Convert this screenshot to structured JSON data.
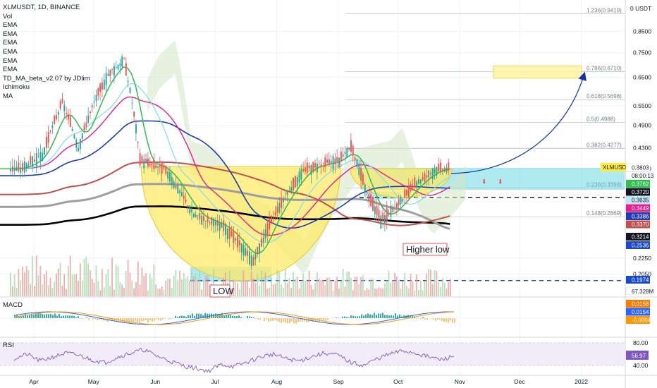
{
  "legend": {
    "symbol": "XLMUSDT, 1D, BINANCE",
    "indicators": [
      "Vol",
      "EMA",
      "EMA",
      "EMA",
      "EMA",
      "EMA",
      "EMA",
      "TD_MA_beta_v2.07 by JDlim",
      "Ichimoku",
      "MA"
    ]
  },
  "chart_data": {
    "type": "candlestick",
    "symbol": "XLMUSDT",
    "interval": "1D",
    "exchange": "BINANCE",
    "currency_label": "0 USDT",
    "x_ticks": [
      "Apr",
      "May",
      "Jun",
      "Jul",
      "Aug",
      "Sep",
      "Oct",
      "Nov",
      "Dec",
      "2022"
    ],
    "y_ticks": [
      "0.8500",
      "0.7500",
      "0.6500",
      "0.5500",
      "0.4900",
      "0.4300",
      "0.3800",
      "0.2250",
      "0.2050"
    ],
    "ylim": [
      0.18,
      0.98
    ],
    "price_path": [
      {
        "date": "2021-03-25",
        "close": 0.38
      },
      {
        "date": "2021-04-05",
        "close": 0.41
      },
      {
        "date": "2021-04-15",
        "close": 0.56
      },
      {
        "date": "2021-04-23",
        "close": 0.43
      },
      {
        "date": "2021-05-01",
        "close": 0.56
      },
      {
        "date": "2021-05-08",
        "close": 0.66
      },
      {
        "date": "2021-05-16",
        "close": 0.72
      },
      {
        "date": "2021-05-24",
        "close": 0.4
      },
      {
        "date": "2021-06-05",
        "close": 0.38
      },
      {
        "date": "2021-06-20",
        "close": 0.29
      },
      {
        "date": "2021-07-05",
        "close": 0.27
      },
      {
        "date": "2021-07-20",
        "close": 0.22
      },
      {
        "date": "2021-08-01",
        "close": 0.3
      },
      {
        "date": "2021-08-15",
        "close": 0.38
      },
      {
        "date": "2021-09-01",
        "close": 0.4
      },
      {
        "date": "2021-09-07",
        "close": 0.43
      },
      {
        "date": "2021-09-15",
        "close": 0.33
      },
      {
        "date": "2021-09-22",
        "close": 0.28
      },
      {
        "date": "2021-10-01",
        "close": 0.31
      },
      {
        "date": "2021-10-10",
        "close": 0.35
      },
      {
        "date": "2021-10-20",
        "close": 0.38
      },
      {
        "date": "2021-10-26",
        "close": 0.38
      }
    ],
    "fib_levels": [
      {
        "label": "1.236(0.9419)",
        "value": 0.9419
      },
      {
        "label": "0.786(0.6710)",
        "value": 0.671
      },
      {
        "label": "0.618(0.5698)",
        "value": 0.5698
      },
      {
        "label": "0.5(0.4988)",
        "value": 0.4988
      },
      {
        "label": "0.382(0.4277)",
        "value": 0.4277
      },
      {
        "label": "0.236(0.3398)",
        "value": 0.3398
      },
      {
        "label": "0.148(0.2869)",
        "value": 0.2869
      }
    ],
    "support_levels": [
      {
        "value": 0.3214,
        "label": "0.3214",
        "color": "#131722"
      },
      {
        "value": 0.1974,
        "label": "0.1974",
        "color": "#1848cc"
      }
    ],
    "price_tags": [
      {
        "text": "XLMUSDT",
        "value": 0.3803,
        "bg": "#ffeb3b",
        "fg": "#131722"
      },
      {
        "text": "0.3803",
        "value": 0.3803,
        "bg": "#ffffff",
        "fg": "#131722"
      },
      {
        "text": "08:00:13",
        "value": 0.3803,
        "bg": "#ffffff",
        "fg": "#131722"
      },
      {
        "text": "0.3762",
        "value": 0.3762,
        "bg": "#2dbe4b",
        "fg": "#ffffff"
      },
      {
        "text": "0.3720",
        "value": 0.372,
        "bg": "#131722",
        "fg": "#ffffff"
      },
      {
        "text": "0.3635",
        "value": 0.3635,
        "bg": "#bfe6f2",
        "fg": "#131722"
      },
      {
        "text": "0.3449",
        "value": 0.3449,
        "bg": "#e91e8c",
        "fg": "#ffffff"
      },
      {
        "text": "0.3386",
        "value": 0.3386,
        "bg": "#1e3cb4",
        "fg": "#ffffff"
      },
      {
        "text": "0.3370",
        "value": 0.337,
        "bg": "#c0504d",
        "fg": "#ffffff"
      },
      {
        "text": "0.3214",
        "value": 0.3214,
        "bg": "#131722",
        "fg": "#ffffff"
      },
      {
        "text": "0.2536",
        "value": 0.2536,
        "bg": "#1848cc",
        "fg": "#ffffff"
      },
      {
        "text": "0.1974",
        "value": 0.1974,
        "bg": "#1848cc",
        "fg": "#ffffff"
      }
    ],
    "annotations": [
      {
        "text": "LOW",
        "date": "2021-07-12",
        "color": "#131722"
      },
      {
        "text": "Higher low",
        "date": "2021-10-05",
        "color": "#131722"
      }
    ],
    "volume": {
      "label": "67.328M"
    },
    "macd": {
      "label": "MACD",
      "values": [
        {
          "text": "0.0158",
          "bg": "#f57c00"
        },
        {
          "text": "0.0154",
          "bg": "#2962ff"
        },
        {
          "text": "-0.0004",
          "bg": "#ff9800"
        }
      ]
    },
    "rsi": {
      "label": "RSI",
      "value": "56.97",
      "ticks": [
        "80.00",
        "40.00"
      ],
      "series": [
        52,
        60,
        48,
        55,
        62,
        58,
        50,
        45,
        55,
        62,
        68,
        57,
        48,
        40,
        35,
        30,
        42,
        38,
        46,
        55,
        60,
        52,
        48,
        56,
        62,
        58,
        45,
        40,
        52,
        60,
        66,
        62,
        55,
        50,
        57
      ]
    },
    "colors": {
      "up": "#26a69a",
      "down": "#ef5350",
      "ema_black": "#000000",
      "ema_blue": "#1e3cb4",
      "ema_pink": "#e91e8c",
      "ema_green": "#2dbe4b",
      "ema_red": "#c0504d",
      "ma_grey": "#9e9e9e",
      "cup_fill": "#fde96a",
      "cloud": "#d4e6c4"
    }
  }
}
